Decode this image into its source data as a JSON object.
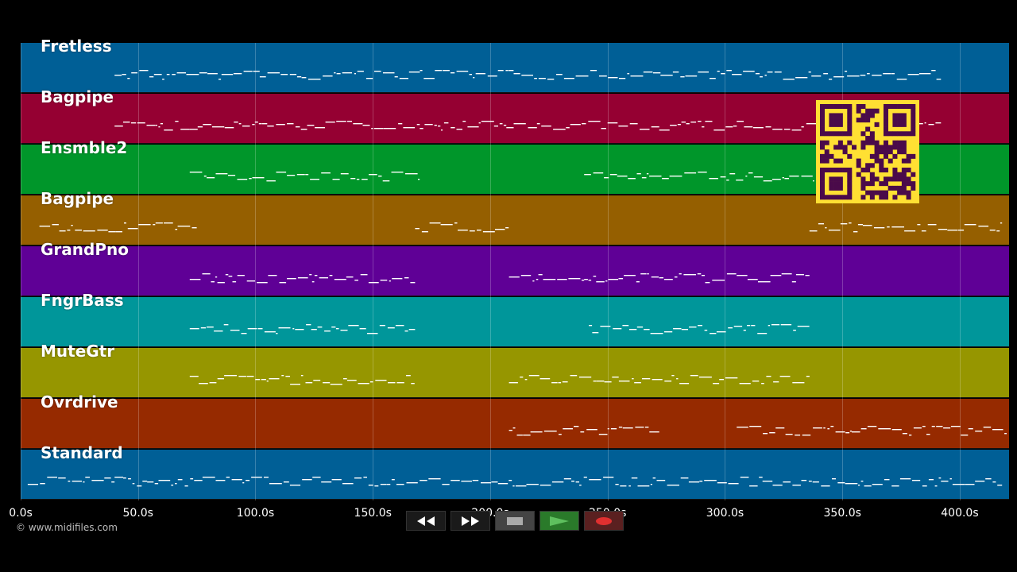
{
  "app": {
    "copyright": "© www.midifiles.com"
  },
  "timeline": {
    "ticks": [
      "0.0s",
      "50.0s",
      "100.0s",
      "150.0s",
      "200.0s",
      "250.0s",
      "300.0s",
      "350.0s",
      "400.0s"
    ],
    "tick_values": [
      0,
      50,
      100,
      150,
      200,
      250,
      300,
      350,
      400
    ],
    "max_seconds": 421
  },
  "tracks": [
    {
      "name": "Fretless",
      "color": "#005f96",
      "segments": [
        [
          40,
          210
        ],
        [
          210,
          352
        ],
        [
          352,
          392
        ]
      ]
    },
    {
      "name": "Bagpipe",
      "color": "#950032",
      "segments": [
        [
          40,
          72
        ],
        [
          72,
          105
        ],
        [
          105,
          122
        ],
        [
          122,
          170
        ],
        [
          170,
          210
        ],
        [
          210,
          250
        ],
        [
          250,
          272
        ],
        [
          272,
          305
        ],
        [
          305,
          392
        ]
      ]
    },
    {
      "name": "Ensmble2",
      "color": "#00962a",
      "segments": [
        [
          72,
          170
        ],
        [
          240,
          338
        ]
      ]
    },
    {
      "name": "Bagpipe",
      "color": "#955f00",
      "segments": [
        [
          8,
          75
        ],
        [
          168,
          208
        ],
        [
          336,
          418
        ]
      ]
    },
    {
      "name": "GrandPno",
      "color": "#5f0096",
      "segments": [
        [
          72,
          168
        ],
        [
          208,
          240
        ],
        [
          240,
          305
        ],
        [
          305,
          336
        ]
      ]
    },
    {
      "name": "FngrBass",
      "color": "#00969a",
      "segments": [
        [
          72,
          168
        ],
        [
          242,
          336
        ]
      ]
    },
    {
      "name": "MuteGtr",
      "color": "#969600",
      "segments": [
        [
          72,
          168
        ],
        [
          208,
          336
        ]
      ]
    },
    {
      "name": "Ovrdrive",
      "color": "#962a00",
      "segments": [
        [
          208,
          272
        ],
        [
          305,
          354
        ],
        [
          354,
          420
        ]
      ]
    },
    {
      "name": "Standard",
      "color": "#005f96",
      "segments": [
        [
          3,
          40
        ],
        [
          40,
          392
        ],
        [
          392,
          418
        ]
      ]
    }
  ],
  "transport": {
    "rewind_icon": "rewind-icon",
    "forward_icon": "fast-forward-icon",
    "stop_icon": "stop-icon",
    "play_icon": "play-icon",
    "record_icon": "record-icon",
    "colors": {
      "play": "#5ec05e",
      "record": "#e03030",
      "stop": "#aaaaaa"
    }
  },
  "qr": {
    "color": "#ffe033",
    "dark": "#4a0a4a"
  }
}
